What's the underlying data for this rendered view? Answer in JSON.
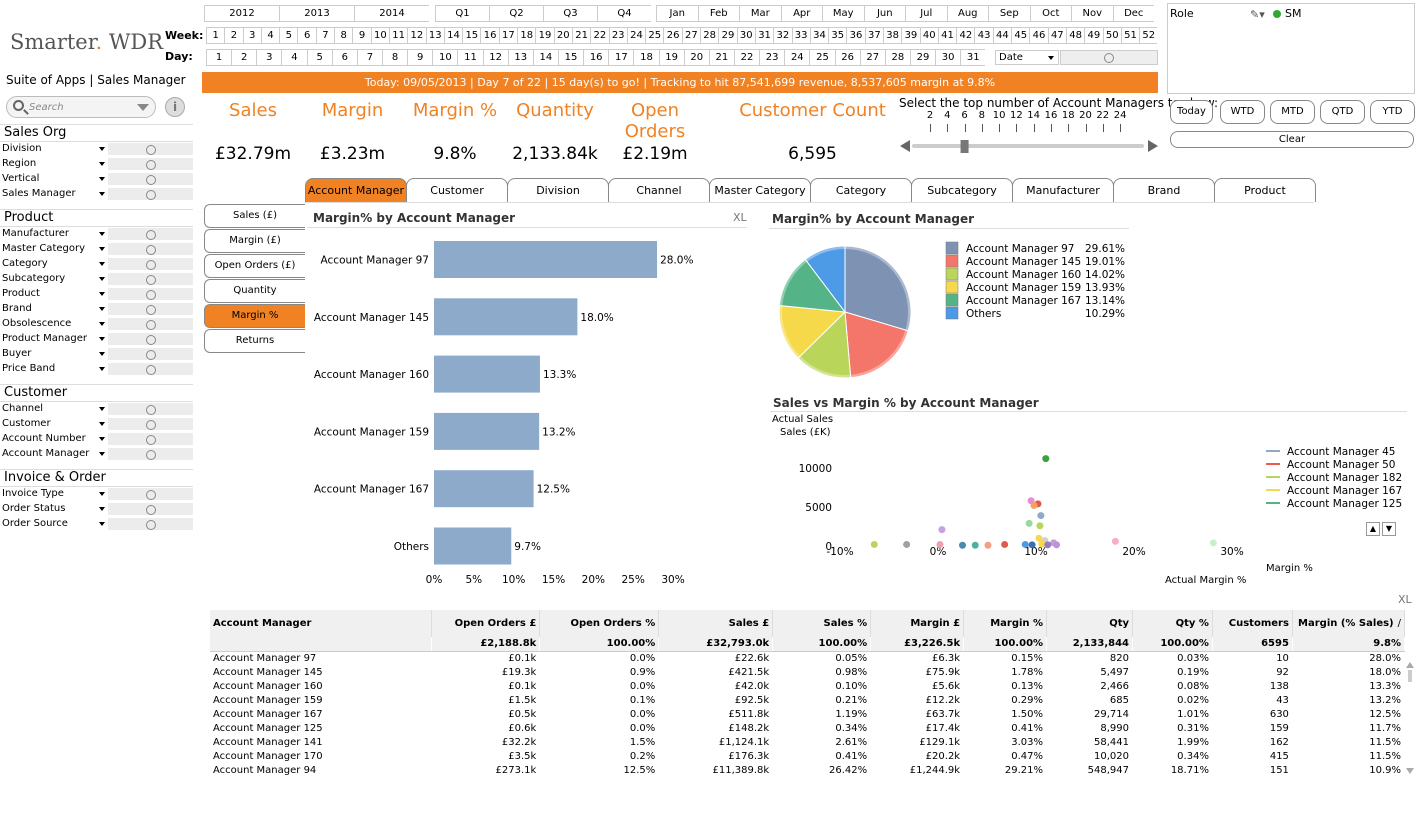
{
  "brand": {
    "logo_a": "Smarter",
    "logo_dot": ".",
    "logo_b": " WDR",
    "suite": "Suite of Apps",
    "sep": "|",
    "app": "Sales Manager"
  },
  "search": {
    "placeholder": "Search"
  },
  "info_label": "i",
  "listboxes": [
    {
      "title": "Sales Org",
      "items": [
        "Division",
        "Region",
        "Vertical",
        "Sales Manager"
      ]
    },
    {
      "title": "Product",
      "items": [
        "Manufacturer",
        "Master Category",
        "Category",
        "Subcategory",
        "Product",
        "Brand",
        "Obsolescence",
        "Product Manager",
        "Buyer",
        "Price Band"
      ]
    },
    {
      "title": "Customer",
      "items": [
        "Channel",
        "Customer",
        "Account Number",
        "Account Manager"
      ]
    },
    {
      "title": "Invoice & Order",
      "items": [
        "Invoice Type",
        "Order Status",
        "Order Source"
      ]
    }
  ],
  "calendar": {
    "years": [
      "2012",
      "2013",
      "2014"
    ],
    "quarters": [
      "Q1",
      "Q2",
      "Q3",
      "Q4"
    ],
    "months": [
      "Jan",
      "Feb",
      "Mar",
      "Apr",
      "May",
      "Jun",
      "Jul",
      "Aug",
      "Sep",
      "Oct",
      "Nov",
      "Dec"
    ],
    "week_label": "Week:",
    "day_label": "Day:",
    "weeks": [
      "1",
      "2",
      "3",
      "4",
      "5",
      "6",
      "7",
      "8",
      "9",
      "10",
      "11",
      "12",
      "13",
      "14",
      "15",
      "16",
      "17",
      "18",
      "19",
      "20",
      "21",
      "22",
      "23",
      "24",
      "25",
      "26",
      "27",
      "28",
      "29",
      "30",
      "31",
      "32",
      "33",
      "34",
      "35",
      "36",
      "37",
      "38",
      "39",
      "40",
      "41",
      "42",
      "43",
      "44",
      "45",
      "46",
      "47",
      "48",
      "49",
      "50",
      "51",
      "52"
    ],
    "days": [
      "1",
      "2",
      "3",
      "4",
      "5",
      "6",
      "7",
      "8",
      "9",
      "10",
      "11",
      "12",
      "13",
      "14",
      "15",
      "16",
      "17",
      "18",
      "19",
      "20",
      "21",
      "22",
      "23",
      "24",
      "25",
      "26",
      "27",
      "28",
      "29",
      "30",
      "31"
    ],
    "date_select": "Date"
  },
  "banner": "Today: 09/05/2013  |  Day 7 of 22  |  15 day(s) to go!  |  Tracking to hit 87,541,699 revenue,  8,537,605 margin at 9.8%",
  "kpis": [
    {
      "label": "Sales",
      "value": "£32.79m"
    },
    {
      "label": "Margin",
      "value": "£3.23m"
    },
    {
      "label": "Margin %",
      "value": "9.8%"
    },
    {
      "label": "Quantity",
      "value": "2,133.84k"
    },
    {
      "label": "Open Orders",
      "value": "£2.19m"
    },
    {
      "label": "Customer Count",
      "value": "6,595"
    }
  ],
  "role": {
    "label": "Role",
    "value": "SM"
  },
  "topn": {
    "label": "Select the top number of Account Managers to show:",
    "ticks": [
      "2",
      "4",
      "6",
      "8",
      "10",
      "12",
      "14",
      "16",
      "18",
      "20",
      "22",
      "24"
    ],
    "selected": 6
  },
  "period_buttons": [
    "Today",
    "WTD",
    "MTD",
    "QTD",
    "YTD"
  ],
  "clear_label": "Clear",
  "dim_tabs": [
    "Account Manager",
    "Customer",
    "Division",
    "Channel",
    "Master Category",
    "Category",
    "Subcategory",
    "Manufacturer",
    "Brand",
    "Product"
  ],
  "dim_active": 0,
  "measure_tabs": [
    "Sales (£)",
    "Margin (£)",
    "Open Orders (£)",
    "Quantity",
    "Margin %",
    "Returns"
  ],
  "measure_active": 4,
  "bar_title": "Margin% by Account Manager",
  "pie_title": "Margin% by Account Manager",
  "scatter_title": "Sales vs Margin % by Account Manager",
  "xl_label": "XL",
  "chart_data": [
    {
      "type": "bar",
      "orientation": "horizontal",
      "categories": [
        "Account Manager 97",
        "Account Manager 145",
        "Account Manager 160",
        "Account Manager 159",
        "Account Manager 167",
        "Others"
      ],
      "values": [
        28.0,
        18.0,
        13.3,
        13.2,
        12.5,
        9.7
      ],
      "data_labels": [
        "28.0%",
        "18.0%",
        "13.3%",
        "13.2%",
        "12.5%",
        "9.7%"
      ],
      "xticks": [
        "0%",
        "5%",
        "10%",
        "15%",
        "20%",
        "25%",
        "30%"
      ],
      "xlim": [
        0,
        30
      ],
      "color": "#8eaacb"
    },
    {
      "type": "pie",
      "labels": [
        "Account Manager 97",
        "Account Manager 145",
        "Account Manager 160",
        "Account Manager 159",
        "Account Manager 167",
        "Others"
      ],
      "values": [
        29.61,
        19.01,
        14.02,
        13.93,
        13.14,
        10.29
      ],
      "value_labels": [
        "29.61%",
        "19.01%",
        "14.02%",
        "13.93%",
        "13.14%",
        "10.29%"
      ],
      "colors": [
        "#7e93b3",
        "#f4766a",
        "#b9d65a",
        "#f6d94a",
        "#55b487",
        "#4d9be6"
      ],
      "legend": "right"
    },
    {
      "type": "scatter",
      "ylabel_1": "Actual Sales",
      "ylabel_2": "Sales (£K)",
      "xlabel": "Actual Margin %",
      "legend_title": "Margin %",
      "yticks": [
        "0",
        "5000",
        "10000"
      ],
      "xticks": [
        "-10%",
        "0%",
        "10%",
        "20%",
        "30%"
      ],
      "xlim": [
        -10,
        30
      ],
      "ylim": [
        0,
        10000
      ],
      "series": [
        {
          "name": "Account Manager 45",
          "color": "#8eaacb"
        },
        {
          "name": "Account Manager 50",
          "color": "#f05a4a"
        },
        {
          "name": "Account Manager 182",
          "color": "#b9d65a"
        },
        {
          "name": "Account Manager 167",
          "color": "#f6d94a"
        },
        {
          "name": "Account Manager 125",
          "color": "#55b487"
        }
      ],
      "points": [
        {
          "x": 11,
          "y": 11200,
          "c": "#3ca03c"
        },
        {
          "x": 9.5,
          "y": 5800,
          "c": "#e98bd8"
        },
        {
          "x": 10.2,
          "y": 5400,
          "c": "#e05a4a"
        },
        {
          "x": 9.8,
          "y": 5200,
          "c": "#f4a060"
        },
        {
          "x": 10.5,
          "y": 3900,
          "c": "#8eaacb"
        },
        {
          "x": 9.3,
          "y": 2900,
          "c": "#9ad8a0"
        },
        {
          "x": 10.4,
          "y": 2600,
          "c": "#b9d65a"
        },
        {
          "x": 0.4,
          "y": 2100,
          "c": "#c9a0e0"
        },
        {
          "x": 10.3,
          "y": 1000,
          "c": "#f6d94a"
        },
        {
          "x": 10.9,
          "y": 700,
          "c": "#d0d0d0"
        },
        {
          "x": 11.8,
          "y": 400,
          "c": "#c0a0d0"
        },
        {
          "x": 18.1,
          "y": 600,
          "c": "#f4b0c0"
        },
        {
          "x": 28.1,
          "y": 400,
          "c": "#c8f0c8"
        },
        {
          "x": -6.5,
          "y": 200,
          "c": "#b9d65a"
        },
        {
          "x": -3.2,
          "y": 200,
          "c": "#a0a0a0"
        },
        {
          "x": 0.2,
          "y": 200,
          "c": "#f0a0b0"
        },
        {
          "x": 2.5,
          "y": 100,
          "c": "#4a8ab0"
        },
        {
          "x": 3.8,
          "y": 100,
          "c": "#50b0a0"
        },
        {
          "x": 5.1,
          "y": 100,
          "c": "#f4a080"
        },
        {
          "x": 6.8,
          "y": 200,
          "c": "#e05a4a"
        },
        {
          "x": 8.9,
          "y": 200,
          "c": "#4d9be6"
        },
        {
          "x": 9.6,
          "y": 150,
          "c": "#3a70b0"
        },
        {
          "x": 10.6,
          "y": 250,
          "c": "#f6d94a"
        },
        {
          "x": 11.2,
          "y": 150,
          "c": "#9a7ac0"
        },
        {
          "x": 12.1,
          "y": 150,
          "c": "#c090e0"
        }
      ]
    }
  ],
  "table": {
    "columns": [
      "Account Manager",
      "Open Orders £",
      "Open Orders %",
      "Sales £",
      "Sales %",
      "Margin £",
      "Margin %",
      "Qty",
      "Qty %",
      "Customers",
      "Margin (% Sales)"
    ],
    "sort_glyph": "/",
    "totals": [
      "",
      "£2,188.8k",
      "100.00%",
      "£32,793.0k",
      "100.00%",
      "£3,226.5k",
      "100.00%",
      "2,133,844",
      "100.00%",
      "6595",
      "9.8%"
    ],
    "rows": [
      [
        "Account Manager 97",
        "£0.1k",
        "0.0%",
        "£22.6k",
        "0.05%",
        "£6.3k",
        "0.15%",
        "820",
        "0.03%",
        "10",
        "28.0%"
      ],
      [
        "Account Manager 145",
        "£19.3k",
        "0.9%",
        "£421.5k",
        "0.98%",
        "£75.9k",
        "1.78%",
        "5,497",
        "0.19%",
        "92",
        "18.0%"
      ],
      [
        "Account Manager 160",
        "£0.1k",
        "0.0%",
        "£42.0k",
        "0.10%",
        "£5.6k",
        "0.13%",
        "2,466",
        "0.08%",
        "138",
        "13.3%"
      ],
      [
        "Account Manager 159",
        "£1.5k",
        "0.1%",
        "£92.5k",
        "0.21%",
        "£12.2k",
        "0.29%",
        "685",
        "0.02%",
        "43",
        "13.2%"
      ],
      [
        "Account Manager 167",
        "£0.5k",
        "0.0%",
        "£511.8k",
        "1.19%",
        "£63.7k",
        "1.50%",
        "29,714",
        "1.01%",
        "630",
        "12.5%"
      ],
      [
        "Account Manager 125",
        "£0.6k",
        "0.0%",
        "£148.2k",
        "0.34%",
        "£17.4k",
        "0.41%",
        "8,990",
        "0.31%",
        "159",
        "11.7%"
      ],
      [
        "Account Manager 141",
        "£32.2k",
        "1.5%",
        "£1,124.1k",
        "2.61%",
        "£129.1k",
        "3.03%",
        "58,441",
        "1.99%",
        "162",
        "11.5%"
      ],
      [
        "Account Manager 170",
        "£3.5k",
        "0.2%",
        "£176.3k",
        "0.41%",
        "£20.2k",
        "0.47%",
        "10,020",
        "0.34%",
        "415",
        "11.5%"
      ],
      [
        "Account Manager 94",
        "£273.1k",
        "12.5%",
        "£11,389.8k",
        "26.42%",
        "£1,244.9k",
        "29.21%",
        "548,947",
        "18.71%",
        "151",
        "10.9%"
      ]
    ]
  }
}
